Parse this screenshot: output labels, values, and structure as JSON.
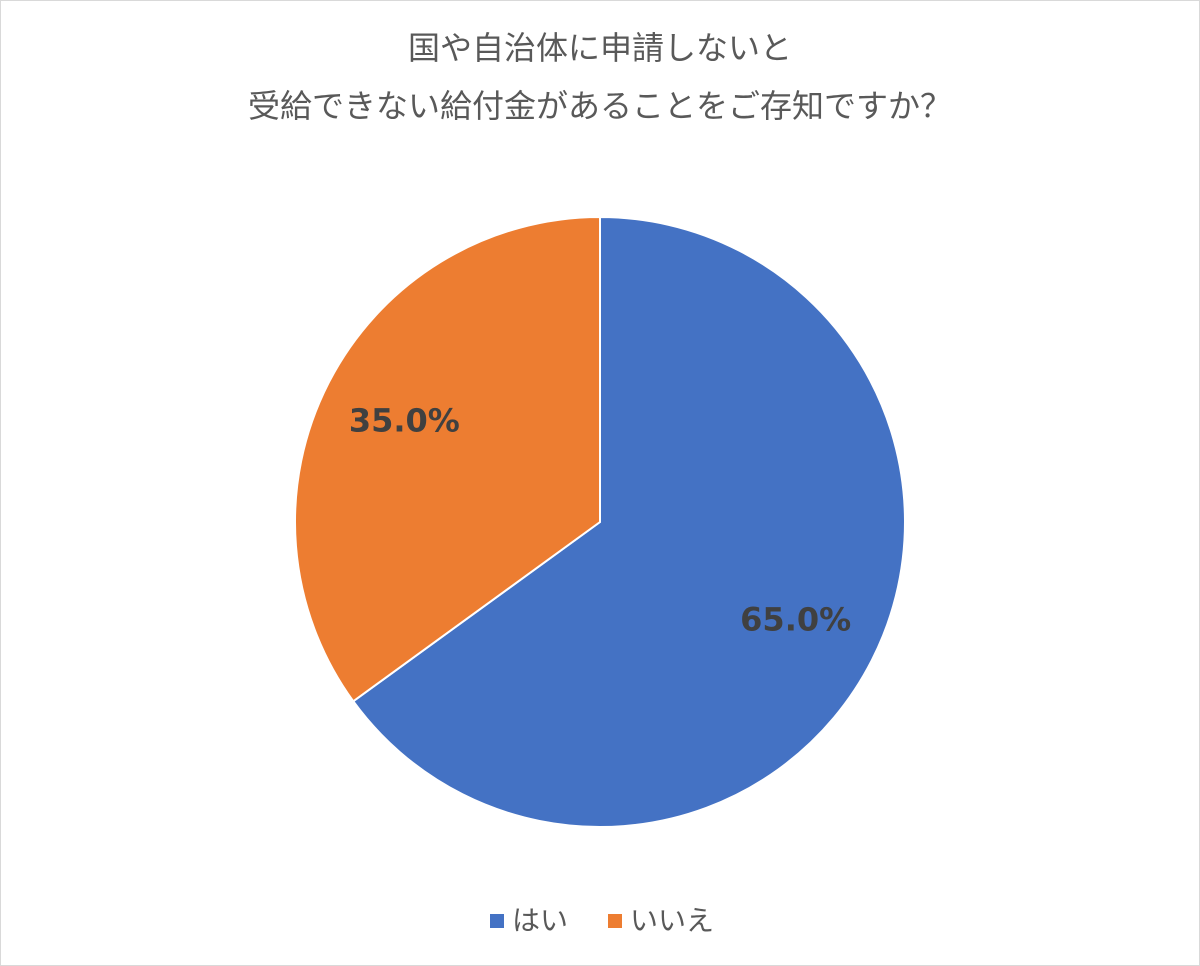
{
  "chart_data": {
    "type": "pie",
    "title": [
      "国や自治体に申請しないと",
      "受給できない給付金があることをご存知ですか？"
    ],
    "categories": [
      "はい",
      "いいえ"
    ],
    "values": [
      65.0,
      35.0
    ],
    "value_labels": [
      "65.0%",
      "35.0%"
    ],
    "colors": [
      "#4472c4",
      "#ed7d31"
    ],
    "legend": "bottom"
  }
}
